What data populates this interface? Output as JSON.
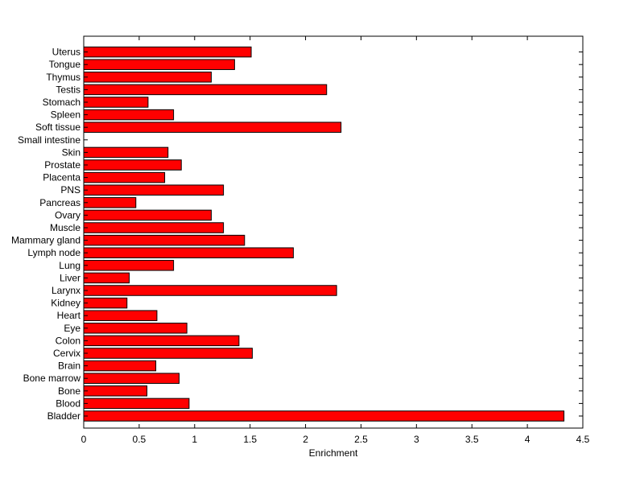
{
  "chart_data": {
    "type": "bar",
    "orientation": "horizontal",
    "title": "",
    "xlabel": "Enrichment",
    "ylabel": "",
    "xlim": [
      0,
      4.5
    ],
    "xticks": [
      "0",
      "0.5",
      "1",
      "1.5",
      "2",
      "2.5",
      "3",
      "3.5",
      "4",
      "4.5"
    ],
    "grid": false,
    "bar_color": "#ff0000",
    "categories": [
      "Bladder",
      "Blood",
      "Bone",
      "Bone marrow",
      "Brain",
      "Cervix",
      "Colon",
      "Eye",
      "Heart",
      "Kidney",
      "Larynx",
      "Liver",
      "Lung",
      "Lymph node",
      "Mammary gland",
      "Muscle",
      "Ovary",
      "Pancreas",
      "PNS",
      "Placenta",
      "Prostate",
      "Skin",
      "Small intestine",
      "Soft tissue",
      "Spleen",
      "Stomach",
      "Testis",
      "Thymus",
      "Tongue",
      "Uterus"
    ],
    "values": [
      4.33,
      0.95,
      0.57,
      0.86,
      0.65,
      1.52,
      1.4,
      0.93,
      0.66,
      0.39,
      2.28,
      0.41,
      0.81,
      1.89,
      1.45,
      1.26,
      1.15,
      0.47,
      1.26,
      0.73,
      0.88,
      0.76,
      0.0,
      2.32,
      0.81,
      0.58,
      2.19,
      1.15,
      1.36,
      1.51
    ]
  }
}
